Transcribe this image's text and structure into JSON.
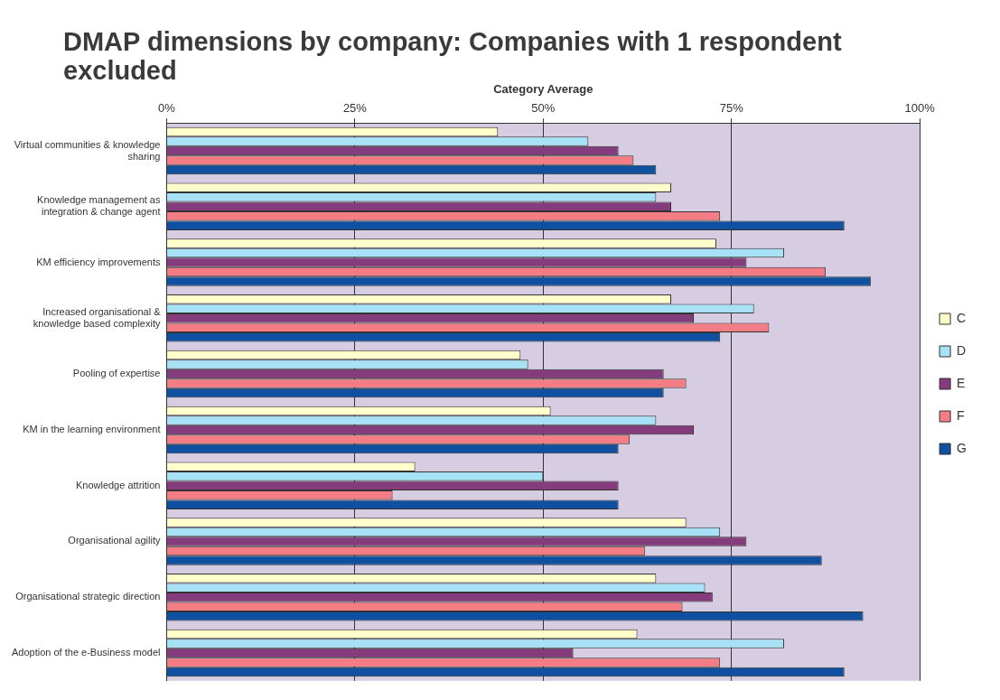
{
  "chart_data": {
    "type": "bar",
    "orientation": "horizontal",
    "title": "DMAP dimensions by company: Companies with 1 respondent excluded",
    "xlabel": "Category Average",
    "categories": [
      "Virtual communities & knowledge sharing",
      "Knowledge management as integration & change agent",
      "KM efficiency improvements",
      "Increased organisational & knowledge based complexity",
      "Pooling of expertise",
      "KM in the learning environment",
      "Knowledge attrition",
      "Organisational agility",
      "Organisational strategic direction",
      "Adoption of the e-Business model"
    ],
    "series": [
      {
        "name": "C",
        "color": "#ffffcc",
        "values": [
          44,
          67,
          73,
          67,
          47,
          51,
          33,
          69,
          65,
          62.5
        ]
      },
      {
        "name": "D",
        "color": "#a6e1f5",
        "values": [
          56,
          65,
          82,
          78,
          48,
          65,
          50,
          73.5,
          71.5,
          82
        ]
      },
      {
        "name": "E",
        "color": "#843c7c",
        "values": [
          60,
          67,
          77,
          70,
          66,
          70,
          60,
          77,
          72.5,
          54
        ]
      },
      {
        "name": "F",
        "color": "#f47c84",
        "values": [
          62,
          73.5,
          87.5,
          80,
          69,
          61.5,
          30,
          63.5,
          68.5,
          73.5
        ]
      },
      {
        "name": "G",
        "color": "#1050a0",
        "values": [
          65,
          90,
          93.5,
          73.5,
          66,
          60,
          60,
          87,
          92.5,
          90
        ]
      }
    ],
    "xlim": [
      0,
      100
    ],
    "xticks": [
      {
        "value": 0,
        "label": "0%"
      },
      {
        "value": 25,
        "label": "25%"
      },
      {
        "value": 50,
        "label": "50%"
      },
      {
        "value": 75,
        "label": "75%"
      },
      {
        "value": 100,
        "label": "100%"
      }
    ],
    "grid": "x",
    "legend": "right"
  }
}
